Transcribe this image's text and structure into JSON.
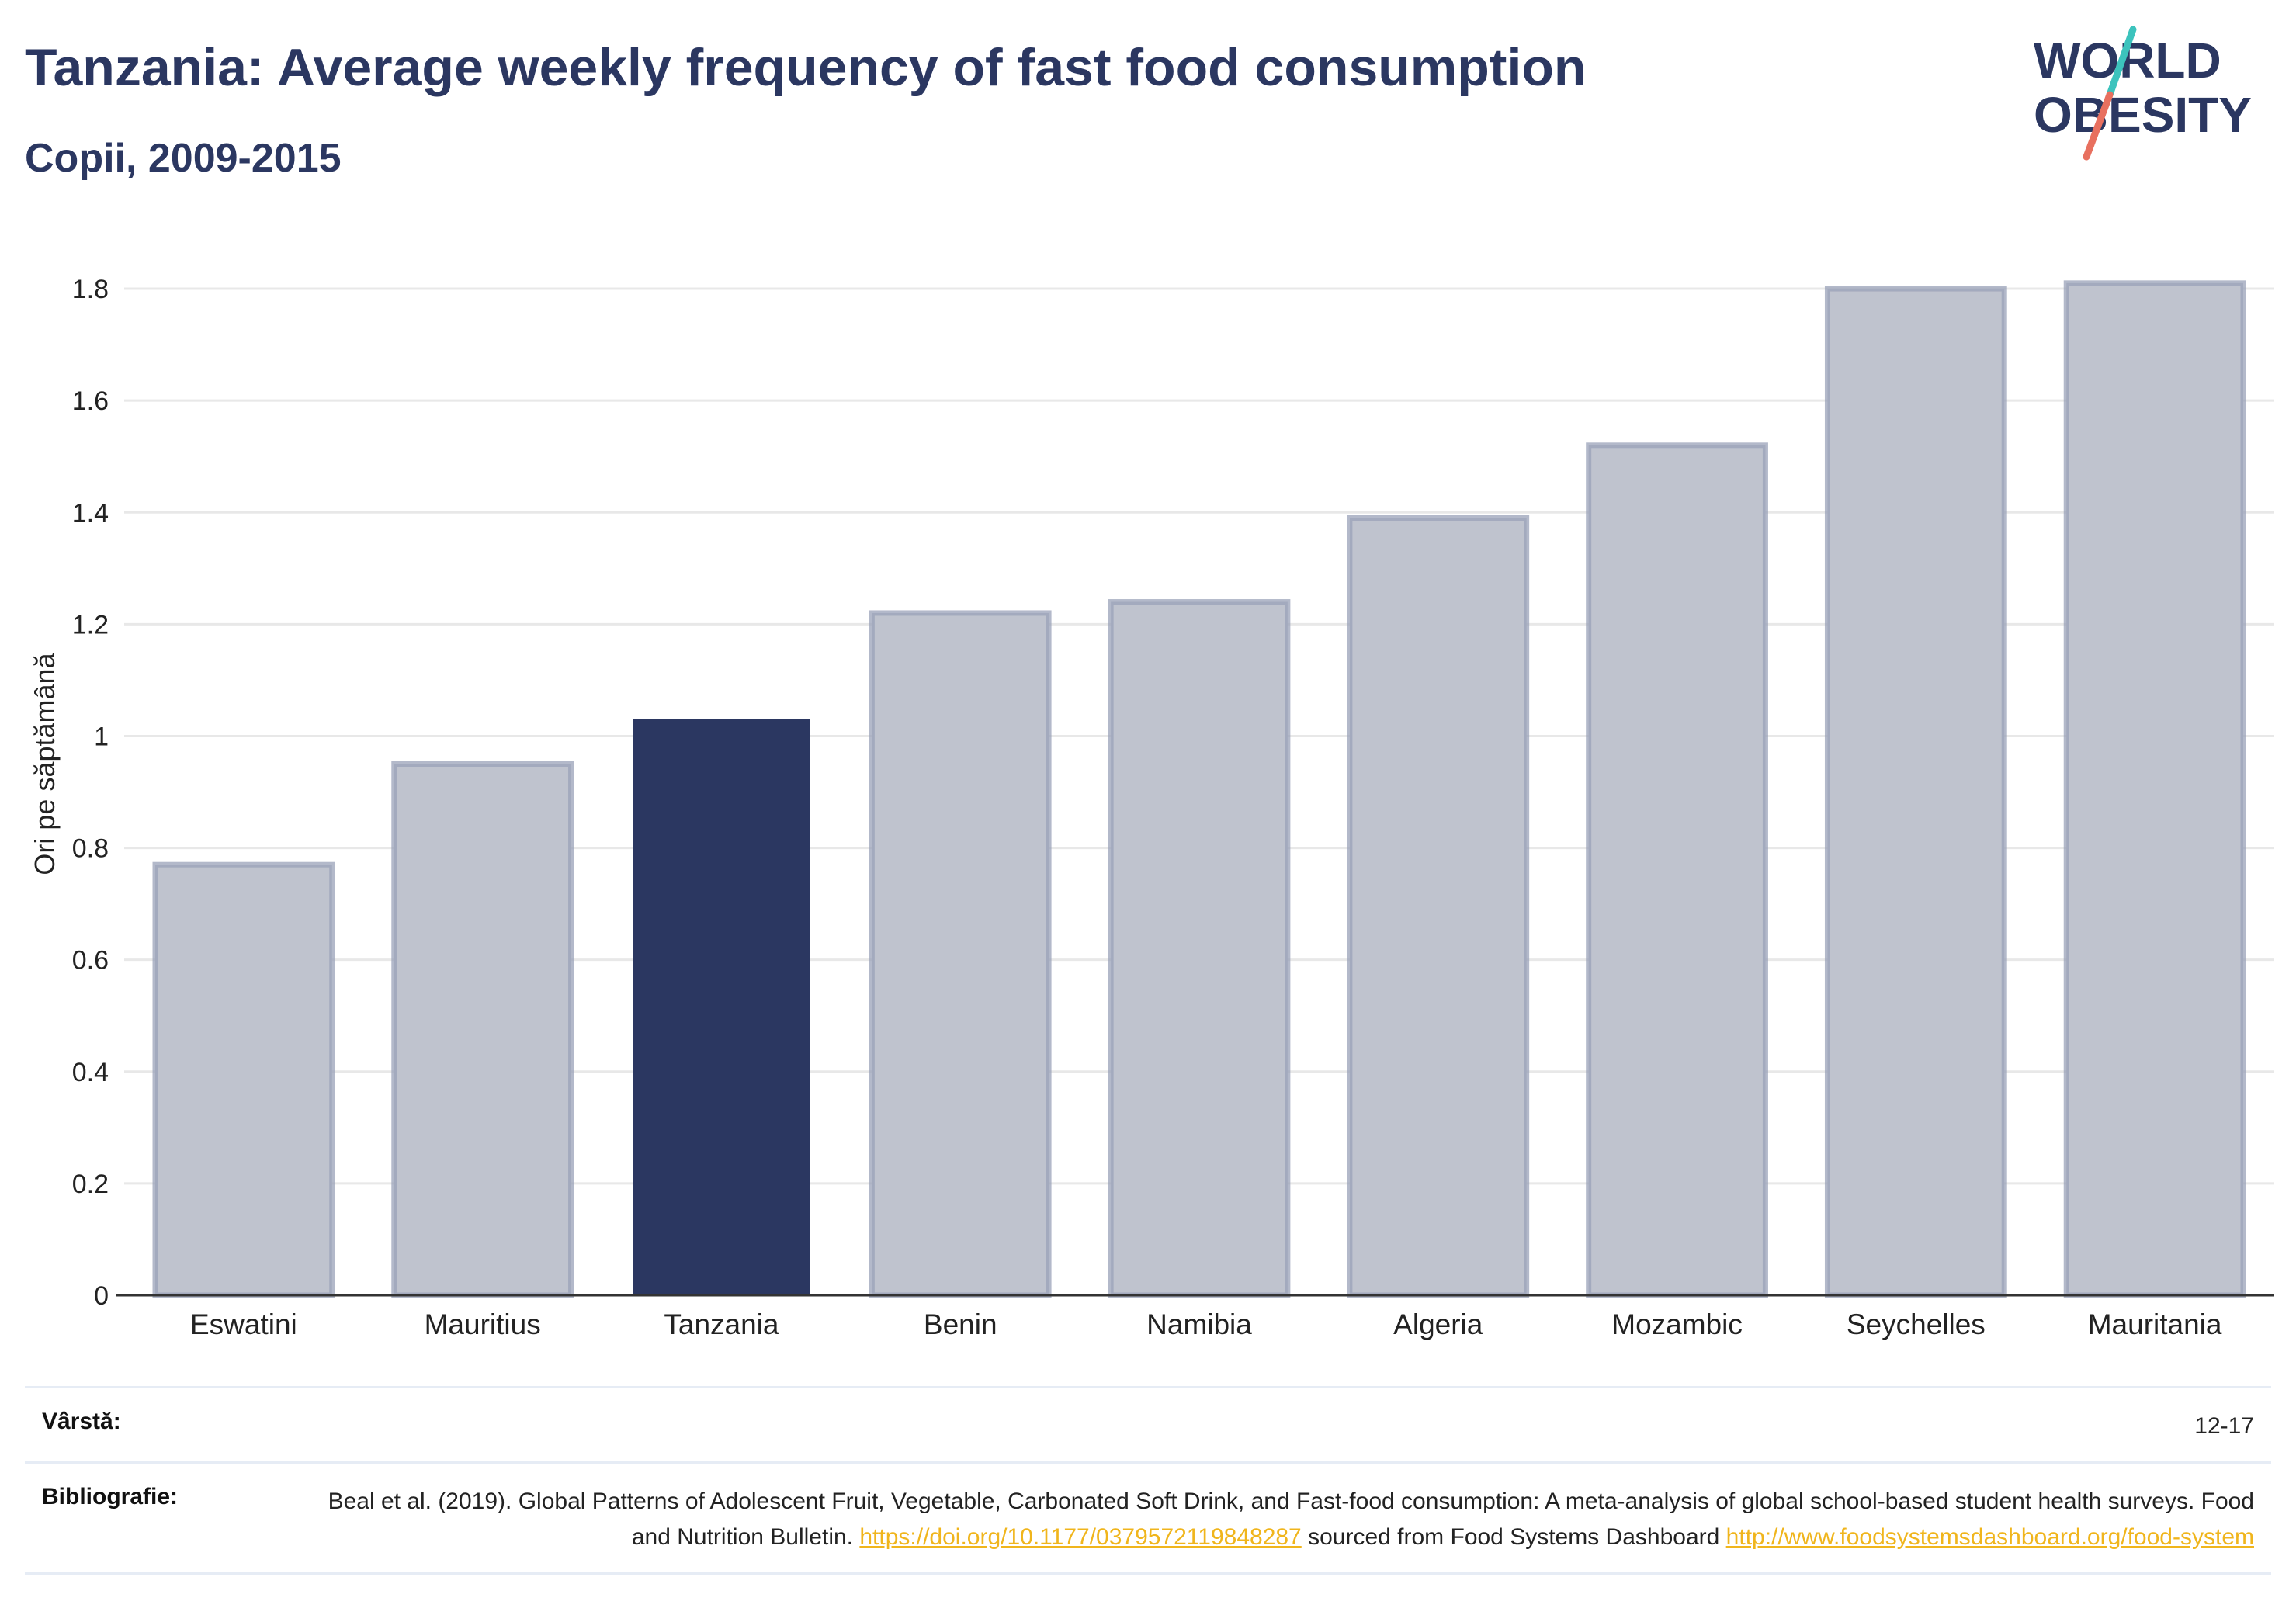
{
  "header": {
    "title": "Tanzania: Average weekly frequency of fast food consumption",
    "subtitle": "Copii, 2009-2015"
  },
  "logo": {
    "line1": "WORLD",
    "line2": "OBESITY"
  },
  "colors": {
    "highlight_bar": "#2b3761",
    "other_bar_fill": "#bfc3ce",
    "other_bar_stroke": "#9aa1b8",
    "title": "#2b3761",
    "link": "#f0b51c",
    "logo_teal": "#3cc3bd",
    "logo_coral": "#e8705f"
  },
  "chart_data": {
    "type": "bar",
    "title": "Tanzania: Average weekly frequency of fast food consumption",
    "subtitle": "Copii, 2009-2015",
    "ylabel": "Ori pe săptămână",
    "xlabel": "",
    "ylim": [
      0,
      1.9
    ],
    "yticks": [
      0,
      0.2,
      0.4,
      0.6,
      0.8,
      1,
      1.2,
      1.4,
      1.6,
      1.8
    ],
    "ytick_labels": [
      "0",
      "0.2",
      "0.4",
      "0.6",
      "0.8",
      "1",
      "1.2",
      "1.4",
      "1.6",
      "1.8"
    ],
    "grid": true,
    "categories": [
      "Eswatini",
      "Mauritius",
      "Tanzania",
      "Benin",
      "Namibia",
      "Algeria",
      "Mozambic",
      "Seychelles",
      "Mauritania"
    ],
    "values": [
      0.77,
      0.95,
      1.03,
      1.22,
      1.24,
      1.39,
      1.52,
      1.8,
      1.81
    ],
    "highlight": "Tanzania"
  },
  "meta": {
    "age_label": "Vârstă:",
    "age_value": "12-17",
    "bib_label": "Bibliografie:",
    "bib_text_1": "Beal et al. (2019). Global Patterns of Adolescent Fruit, Vegetable, Carbonated Soft Drink, and Fast-food consumption: A meta-analysis of global school-based student health surveys. Food and Nutrition Bulletin.",
    "bib_link_1": "https://doi.org/10.1177/0379572119848287",
    "bib_text_2": "sourced from Food Systems Dashboard",
    "bib_link_2": "http://www.foodsystemsdashboard.org/food-system"
  }
}
